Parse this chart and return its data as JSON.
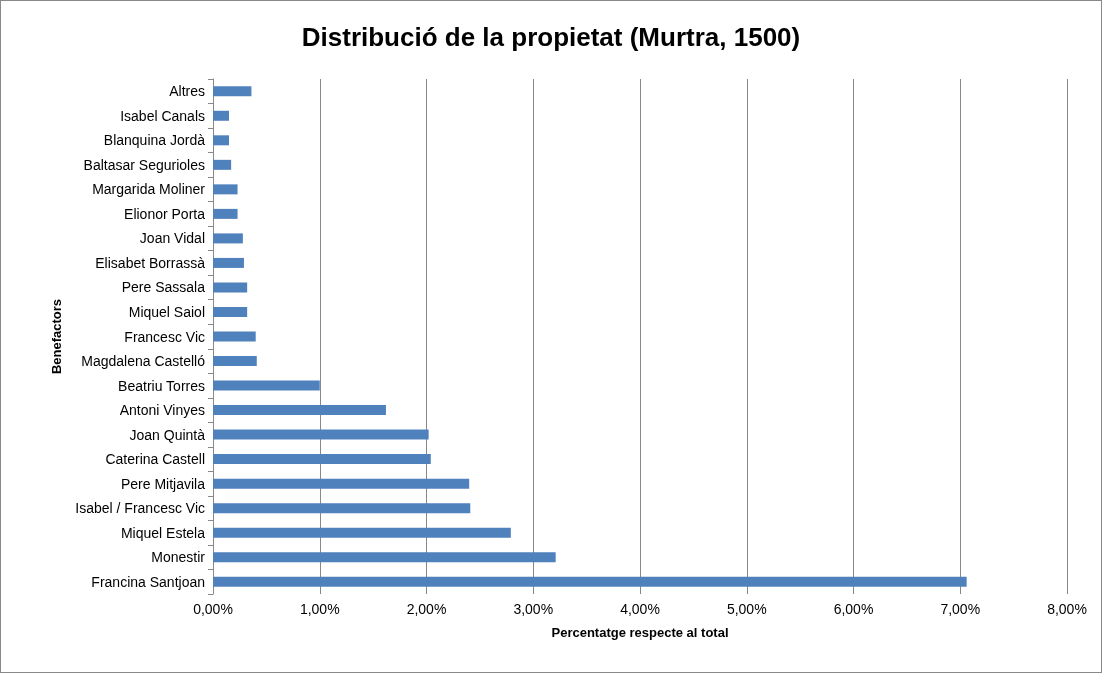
{
  "chart_data": {
    "type": "bar",
    "orientation": "horizontal",
    "title": "Distribució de la propietat (Murtra, 1500)",
    "xlabel": "Percentatge respecte al total",
    "ylabel": "Benefactors",
    "categories": [
      "Altres",
      "Isabel Canals",
      "Blanquina Jordà",
      "Baltasar Segurioles",
      "Margarida Moliner",
      "Elionor Porta",
      "Joan Vidal",
      "Elisabet Borrassà",
      "Pere Sassala",
      "Miquel Saiol",
      "Francesc Vic",
      "Magdalena Castelló",
      "Beatriu Torres",
      "Antoni Vinyes",
      "Joan Quintà",
      "Caterina Castell",
      "Pere Mitjavila",
      "Isabel / Francesc Vic",
      "Miquel Estela",
      "Monestir",
      "Francina Santjoan"
    ],
    "values": [
      0.36,
      0.15,
      0.15,
      0.17,
      0.23,
      0.23,
      0.28,
      0.29,
      0.32,
      0.32,
      0.4,
      0.41,
      1.0,
      1.62,
      2.02,
      2.04,
      2.4,
      2.41,
      2.79,
      3.21,
      7.06
    ],
    "color": "#4f81bd",
    "xlim": [
      0,
      8
    ],
    "xticks": [
      {
        "value": 0,
        "label": "0,00%"
      },
      {
        "value": 1,
        "label": "1,00%"
      },
      {
        "value": 2,
        "label": "2,00%"
      },
      {
        "value": 3,
        "label": "3,00%"
      },
      {
        "value": 4,
        "label": "4,00%"
      },
      {
        "value": 5,
        "label": "5,00%"
      },
      {
        "value": 6,
        "label": "6,00%"
      },
      {
        "value": 7,
        "label": "7,00%"
      },
      {
        "value": 8,
        "label": "8,00%"
      }
    ],
    "grid": "x"
  }
}
